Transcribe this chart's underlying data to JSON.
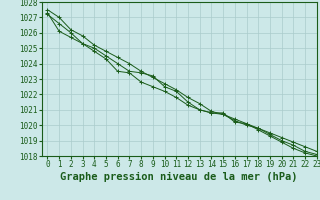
{
  "title": "Graphe pression niveau de la mer (hPa)",
  "background_color": "#cce8e8",
  "grid_color": "#aacccc",
  "line_color": "#1a5c1a",
  "marker_color": "#1a5c1a",
  "ylim": [
    1018,
    1028
  ],
  "xlim": [
    -0.5,
    23
  ],
  "yticks": [
    1018,
    1019,
    1020,
    1021,
    1022,
    1023,
    1024,
    1025,
    1026,
    1027,
    1028
  ],
  "xticks": [
    0,
    1,
    2,
    3,
    4,
    5,
    6,
    7,
    8,
    9,
    10,
    11,
    12,
    13,
    14,
    15,
    16,
    17,
    18,
    19,
    20,
    21,
    22,
    23
  ],
  "line1": [
    1027.2,
    1026.6,
    1026.0,
    1025.3,
    1025.0,
    1024.5,
    1024.0,
    1023.5,
    1023.4,
    1023.2,
    1022.5,
    1022.2,
    1021.5,
    1021.0,
    1020.8,
    1020.7,
    1020.3,
    1020.0,
    1019.8,
    1019.4,
    1019.0,
    1018.7,
    1018.3,
    1018.1
  ],
  "line2": [
    1027.5,
    1027.0,
    1026.2,
    1025.8,
    1025.2,
    1024.8,
    1024.4,
    1024.0,
    1023.5,
    1023.1,
    1022.7,
    1022.3,
    1021.8,
    1021.4,
    1020.9,
    1020.7,
    1020.4,
    1020.1,
    1019.8,
    1019.5,
    1019.2,
    1018.9,
    1018.6,
    1018.3
  ],
  "line3": [
    1027.3,
    1026.1,
    1025.7,
    1025.3,
    1024.8,
    1024.3,
    1023.5,
    1023.4,
    1022.8,
    1022.5,
    1022.2,
    1021.8,
    1021.3,
    1021.0,
    1020.8,
    1020.8,
    1020.2,
    1020.1,
    1019.7,
    1019.3,
    1018.9,
    1018.5,
    1018.2,
    1018.0
  ],
  "title_fontsize": 7.5,
  "tick_fontsize": 5.5
}
